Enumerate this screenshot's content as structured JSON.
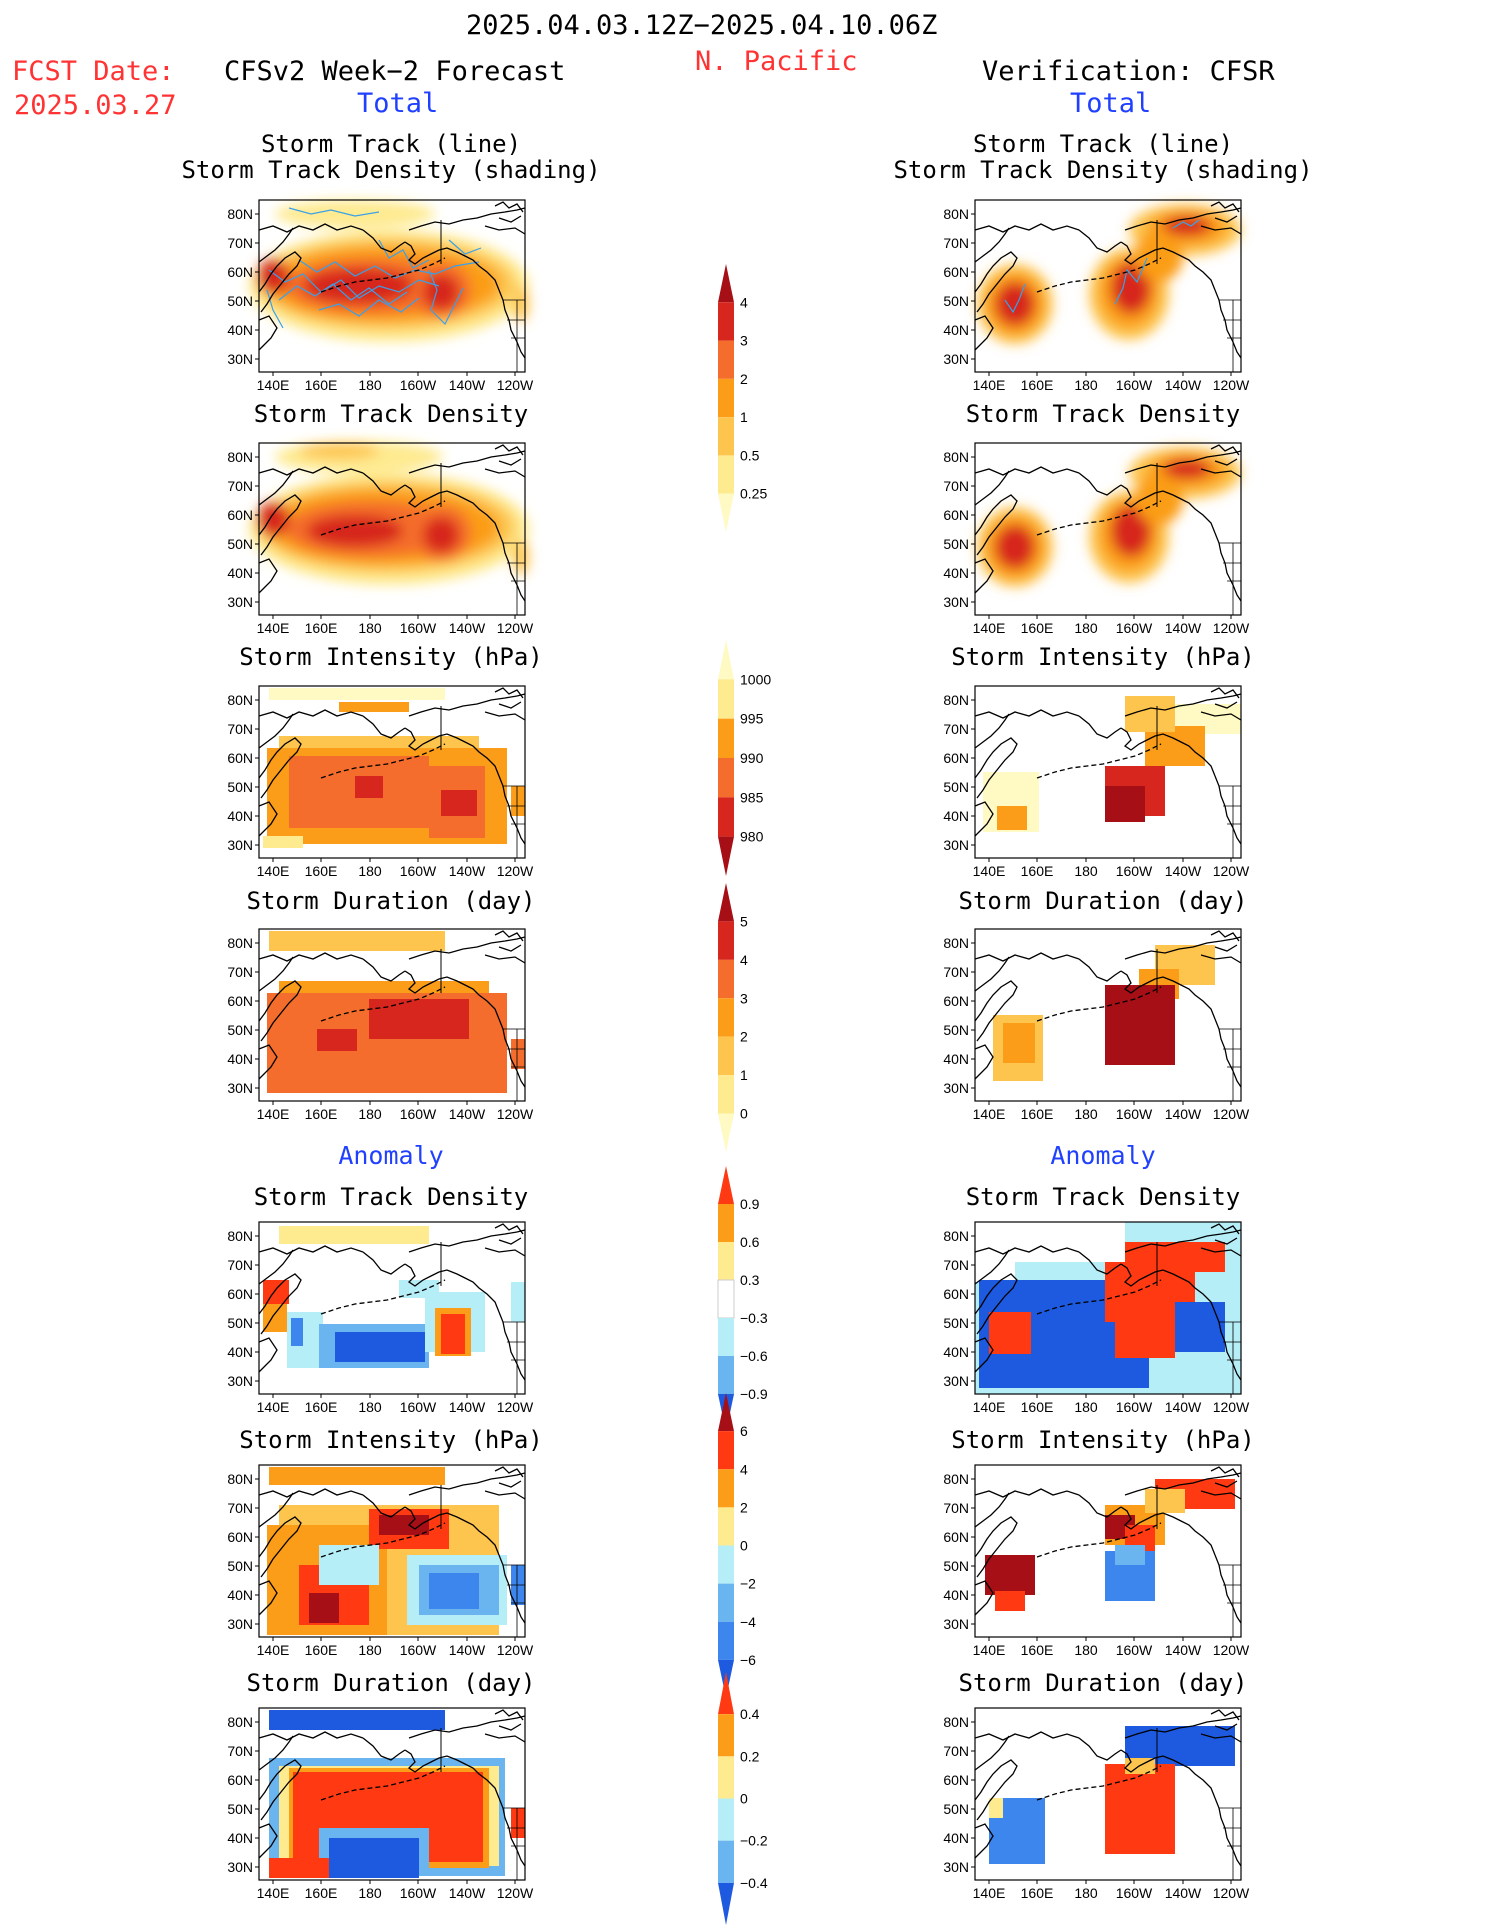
{
  "header": {
    "period": "2025.04.03.12Z−2025.04.10.06Z",
    "region": "N. Pacific",
    "fcst_label": "FCST Date:",
    "fcst_date": "2025.03.27",
    "left_title": "CFSv2 Week−2 Forecast",
    "right_title": "Verification: CFSR",
    "total": "Total",
    "anomaly": "Anomaly"
  },
  "panel_titles": {
    "track_line": "Storm Track (line)",
    "track_shading": "Storm Track Density (shading)",
    "density": "Storm Track Density",
    "intensity": "Storm Intensity (hPa)",
    "duration": "Storm Duration (day)"
  },
  "axes": {
    "lat_labels": [
      "80N",
      "70N",
      "60N",
      "50N",
      "40N",
      "30N"
    ],
    "lon_labels": [
      "140E",
      "160E",
      "180",
      "160W",
      "140W",
      "120W"
    ]
  },
  "colorbars": {
    "density_total": {
      "labels": [
        "4",
        "3",
        "2",
        "1",
        "0.5",
        "0.25"
      ],
      "colors": [
        "#a50f15",
        "#d7261e",
        "#f46d2c",
        "#fb9d18",
        "#fdc44e",
        "#feea8f",
        "#fff9c4"
      ]
    },
    "intensity_total": {
      "labels": [
        "1000",
        "995",
        "990",
        "985",
        "980"
      ],
      "colors": [
        "#fff9c4",
        "#feea8f",
        "#fb9d18",
        "#f46d2c",
        "#d7261e",
        "#a50f15"
      ]
    },
    "duration_total": {
      "labels": [
        "5",
        "4",
        "3",
        "2",
        "1",
        "0"
      ],
      "colors": [
        "#a50f15",
        "#d7261e",
        "#f46d2c",
        "#fb9d18",
        "#fdc44e",
        "#feea8f",
        "#fff9c4"
      ]
    },
    "density_anom": {
      "labels": [
        "0.9",
        "0.6",
        "0.3",
        "−0.3",
        "−0.6",
        "−0.9"
      ],
      "colors": [
        "#ff3a12",
        "#fb9d18",
        "#feea8f",
        "#ffffff",
        "#b6eef8",
        "#6ab4f0",
        "#1e5ae0"
      ]
    },
    "intensity_anom": {
      "labels": [
        "6",
        "4",
        "2",
        "0",
        "−2",
        "−4",
        "−6"
      ],
      "colors": [
        "#a50f15",
        "#ff3a12",
        "#fb9d18",
        "#feea8f",
        "#b6eef8",
        "#6ab4f0",
        "#3d86ee",
        "#1e5ae0"
      ]
    },
    "duration_anom": {
      "labels": [
        "0.4",
        "0.2",
        "0",
        "−0.2",
        "−0.4"
      ],
      "colors": [
        "#ff3a12",
        "#fb9d18",
        "#feea8f",
        "#b6eef8",
        "#6ab4f0",
        "#1e5ae0"
      ]
    }
  },
  "colors": {
    "dark_red": "#a50f15",
    "red": "#d7261e",
    "red_orange": "#f46d2c",
    "orange": "#fb9d18",
    "yellow_orange": "#fdc44e",
    "light_yellow": "#feea8f",
    "pale_yellow": "#fff9c4",
    "anom_red": "#ff3a12",
    "light_blue": "#b6eef8",
    "mid_blue": "#6ab4f0",
    "blue": "#3d86ee",
    "dark_blue": "#1e5ae0",
    "track_line": "#3aa0e8"
  }
}
